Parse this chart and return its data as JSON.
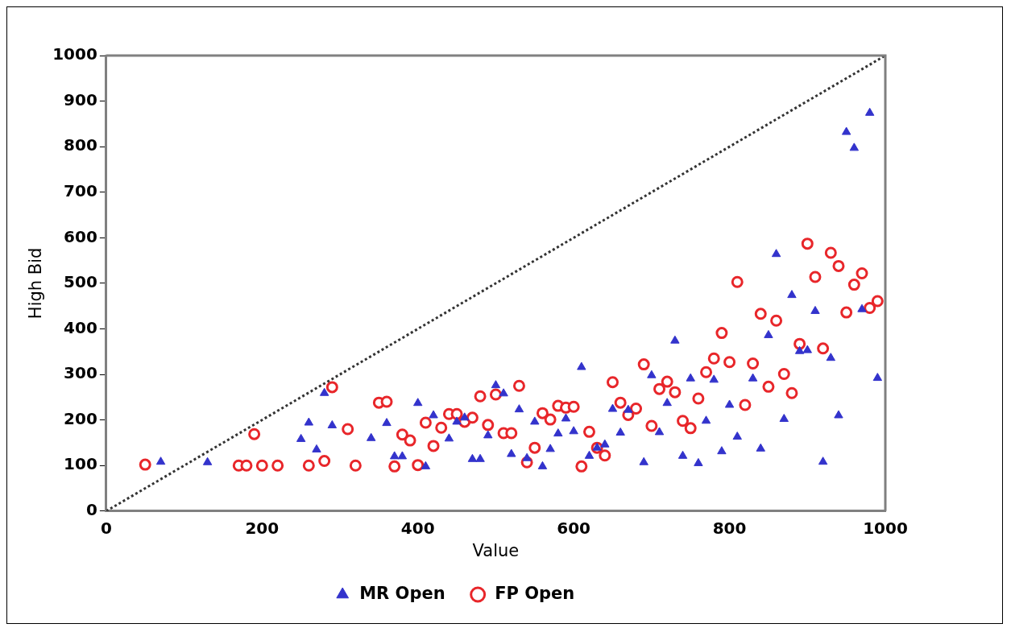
{
  "chart_data": {
    "type": "scatter",
    "xlabel": "Value",
    "ylabel": "High Bid",
    "xlim": [
      0,
      1000
    ],
    "ylim": [
      0,
      1000
    ],
    "xticks": [
      0,
      200,
      400,
      600,
      800,
      1000
    ],
    "yticks": [
      0,
      100,
      200,
      300,
      400,
      500,
      600,
      700,
      800,
      900,
      1000
    ],
    "grid": false,
    "legend": "bottom",
    "series": [
      {
        "name": "FP Open",
        "color": "#e8262a",
        "marker": "circle",
        "x": [
          50,
          170,
          180,
          190,
          200,
          220,
          260,
          280,
          290,
          310,
          320,
          350,
          360,
          370,
          380,
          390,
          400,
          410,
          420,
          430,
          440,
          450,
          460,
          470,
          480,
          490,
          500,
          510,
          520,
          530,
          540,
          550,
          560,
          570,
          580,
          590,
          600,
          610,
          620,
          630,
          640,
          650,
          660,
          670,
          680,
          690,
          700,
          710,
          720,
          730,
          740,
          750,
          760,
          770,
          780,
          790,
          800,
          810,
          820,
          830,
          840,
          850,
          860,
          870,
          880,
          890,
          900,
          910,
          920,
          930,
          940,
          950,
          960,
          970,
          980,
          990
        ],
        "values": [
          102,
          100,
          100,
          169,
          100,
          100,
          100,
          110,
          272,
          180,
          100,
          238,
          240,
          98,
          168,
          155,
          101,
          194,
          143,
          183,
          213,
          213,
          196,
          205,
          252,
          189,
          256,
          171,
          171,
          275,
          107,
          139,
          215,
          201,
          231,
          227,
          229,
          98,
          174,
          139,
          122,
          283,
          238,
          211,
          225,
          322,
          187,
          268,
          284,
          261,
          198,
          182,
          247,
          305,
          335,
          391,
          327,
          503,
          233,
          324,
          433,
          273,
          418,
          301,
          259,
          367,
          587,
          514,
          357,
          567,
          538,
          436,
          497,
          522,
          446,
          461
        ]
      },
      {
        "name": "MR Open",
        "color": "#3333cc",
        "marker": "triangle",
        "x": [
          70,
          130,
          250,
          260,
          270,
          280,
          290,
          340,
          360,
          370,
          380,
          400,
          410,
          420,
          440,
          450,
          460,
          470,
          480,
          490,
          500,
          510,
          520,
          530,
          540,
          550,
          560,
          570,
          580,
          590,
          600,
          610,
          620,
          630,
          640,
          650,
          660,
          670,
          690,
          700,
          710,
          720,
          730,
          740,
          750,
          760,
          770,
          780,
          790,
          800,
          810,
          830,
          840,
          850,
          860,
          870,
          880,
          890,
          900,
          910,
          920,
          930,
          940,
          950,
          960,
          970,
          980,
          990
        ],
        "values": [
          108,
          107,
          158,
          194,
          135,
          259,
          188,
          160,
          193,
          120,
          120,
          237,
          98,
          210,
          159,
          196,
          205,
          114,
          114,
          166,
          276,
          258,
          125,
          223,
          116,
          196,
          98,
          136,
          170,
          203,
          175,
          316,
          121,
          139,
          146,
          224,
          172,
          222,
          107,
          298,
          173,
          237,
          374,
          121,
          291,
          105,
          198,
          288,
          131,
          233,
          163,
          291,
          137,
          386,
          564,
          202,
          474,
          351,
          353,
          439,
          108,
          336,
          210,
          832,
          797,
          443,
          874,
          292
        ]
      },
      {
        "type": "line",
        "color": "#333333",
        "line_style": "dotted",
        "marker": "none",
        "x": [
          0,
          1000
        ],
        "values": [
          0,
          1000
        ]
      }
    ]
  }
}
